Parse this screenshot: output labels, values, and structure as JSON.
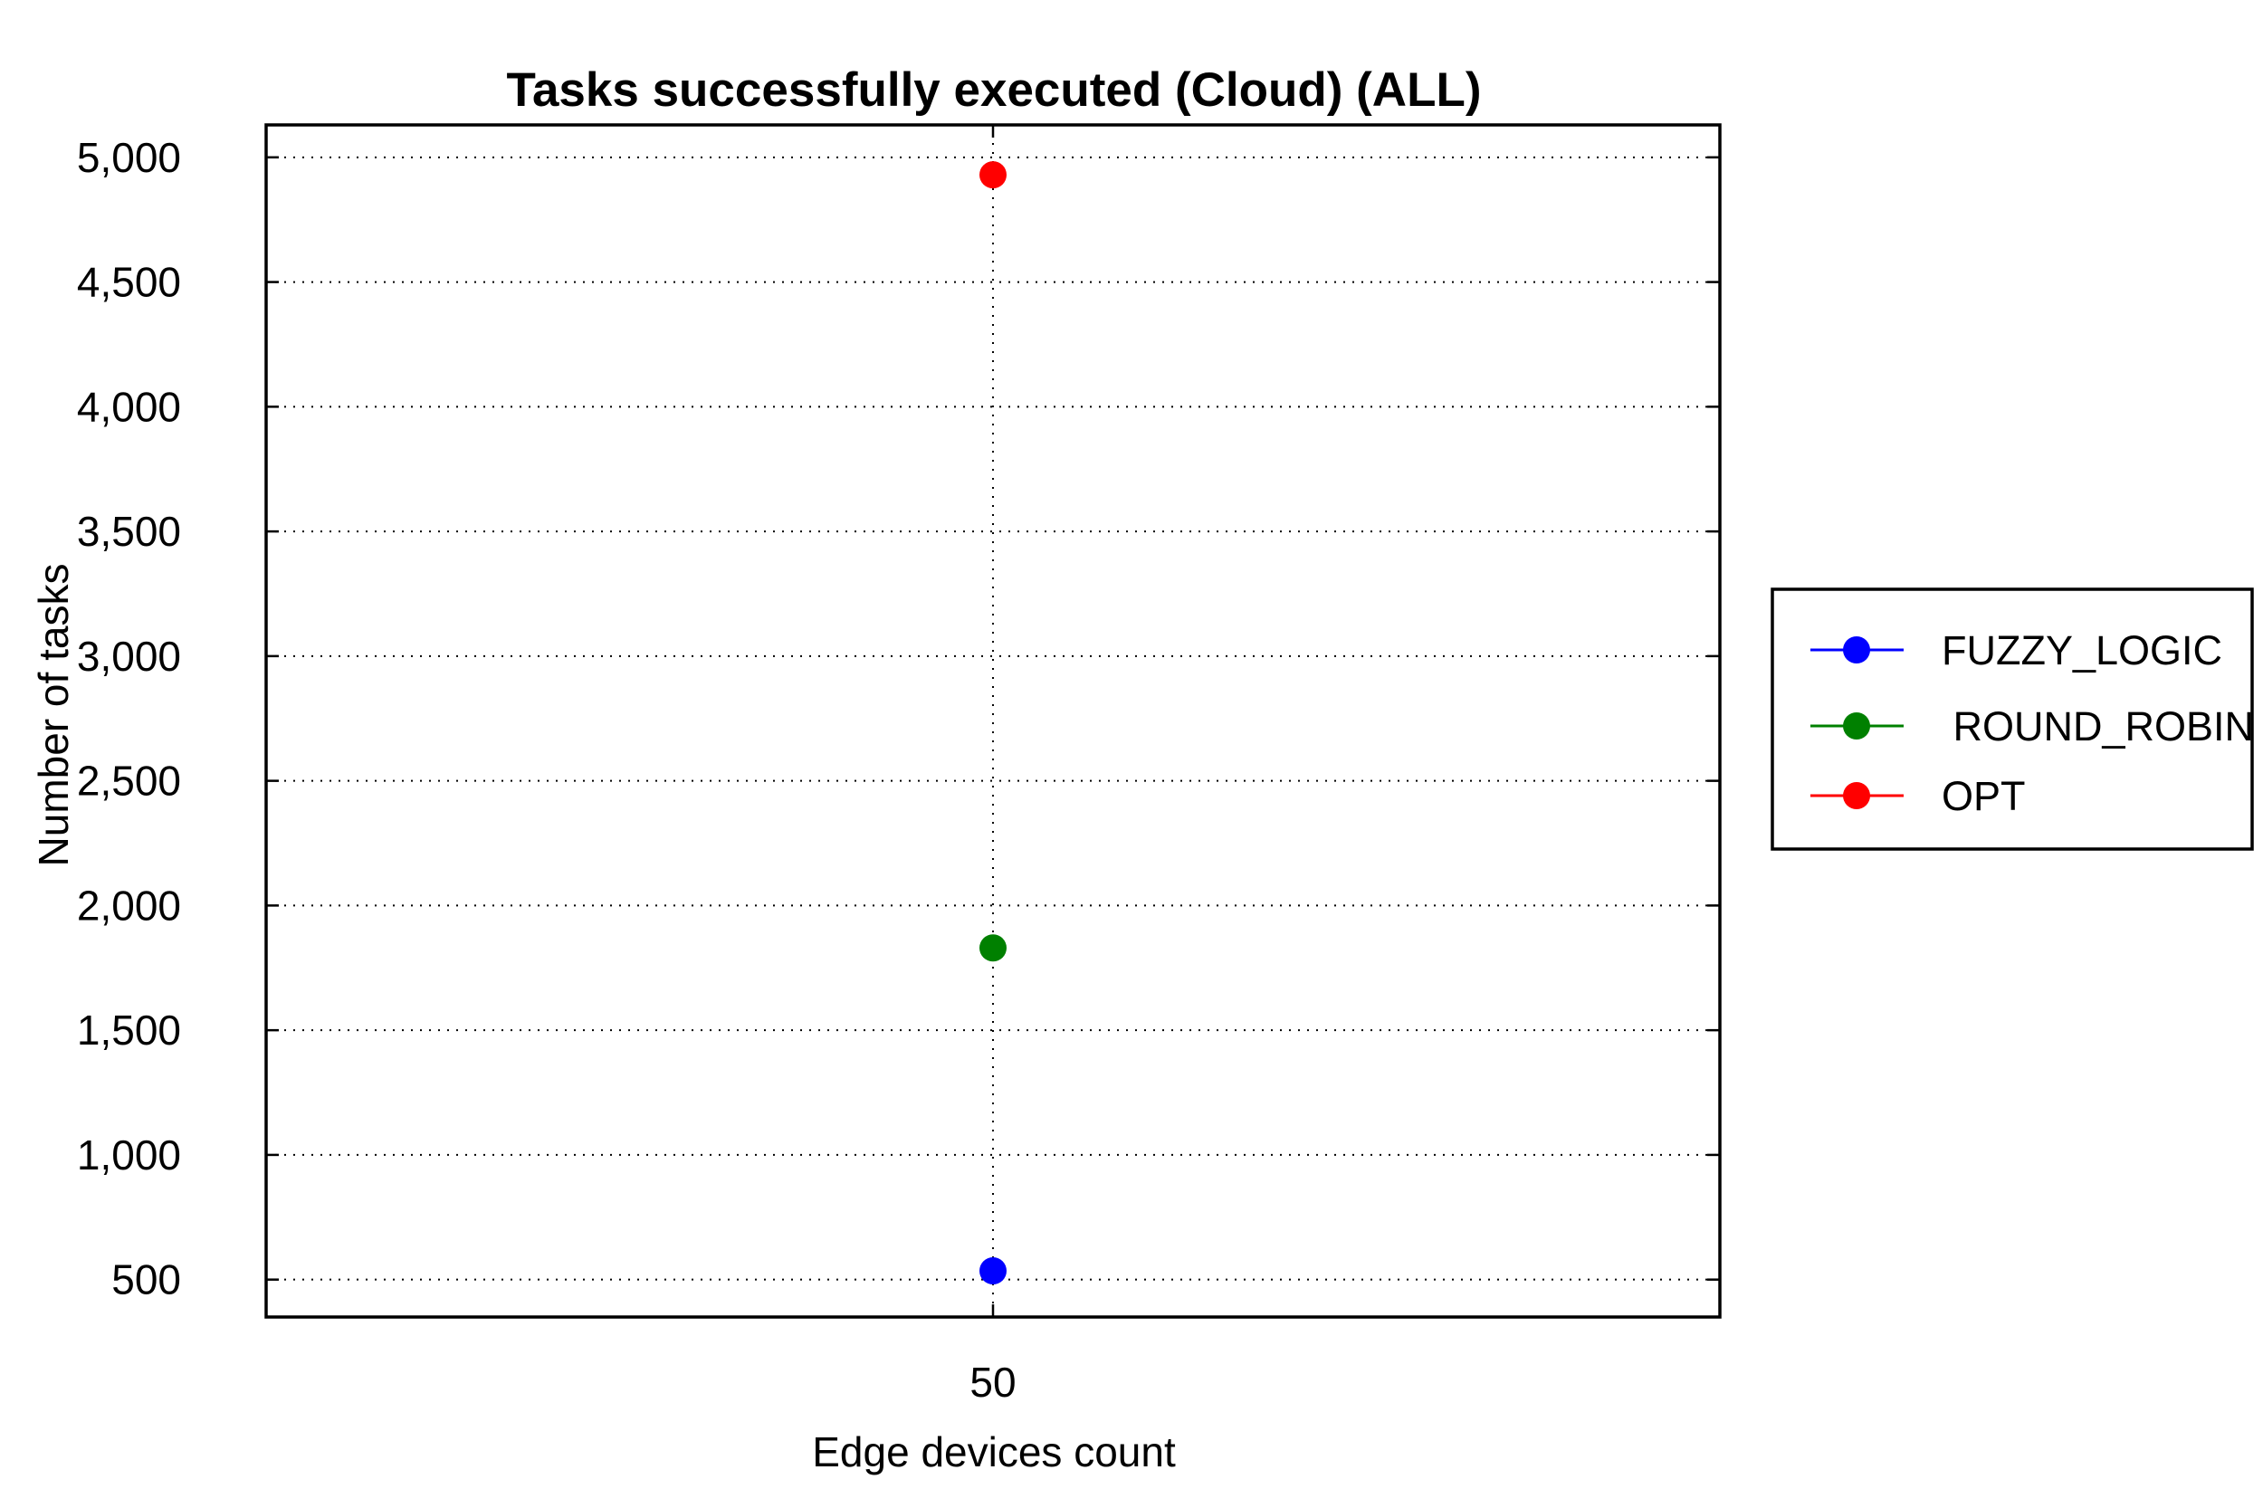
{
  "chart_data": {
    "type": "scatter",
    "title": "Tasks successfully executed (Cloud) (ALL)",
    "xlabel": "Edge devices count",
    "ylabel": "Number of tasks",
    "x_categories": [
      "50"
    ],
    "ylim": [
      350,
      5130
    ],
    "y_ticks": [
      500,
      1000,
      1500,
      2000,
      2500,
      3000,
      3500,
      4000,
      4500,
      5000
    ],
    "y_tick_labels": [
      "500",
      "1,000",
      "1,500",
      "2,000",
      "2,500",
      "3,000",
      "3,500",
      "4,000",
      "4,500",
      "5,000"
    ],
    "grid": true,
    "legend_position": "right",
    "series": [
      {
        "name": "FUZZY_LOGIC",
        "color": "#0000ff",
        "values": [
          535
        ]
      },
      {
        "name": " ROUND_ROBIN",
        "color": "#008000",
        "values": [
          1830
        ]
      },
      {
        "name": "OPT",
        "color": "#ff0000",
        "values": [
          4930
        ]
      }
    ]
  }
}
